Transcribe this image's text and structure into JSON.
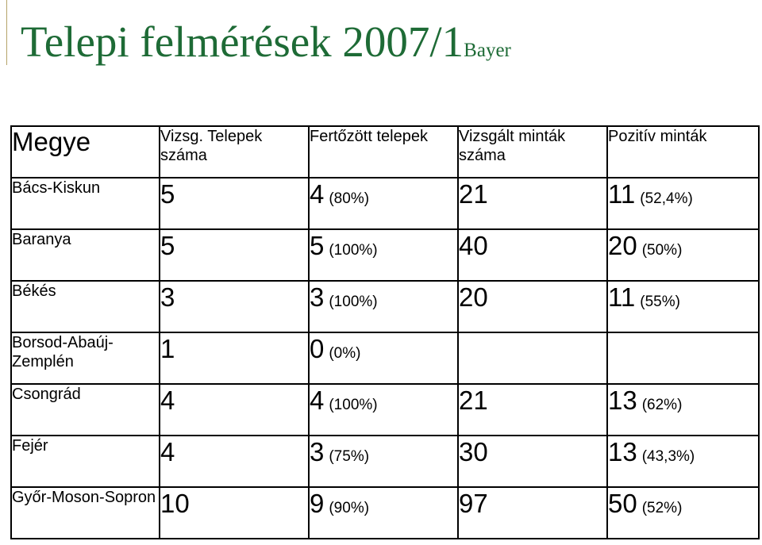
{
  "header": {
    "title": "Telepi felmérések 2007/1",
    "subtitle": "Bayer"
  },
  "table": {
    "columns": [
      "Megye",
      "Vizsg. Telepek száma",
      "Fertőzött telepek",
      "Vizsgált minták száma",
      "Pozitív minták"
    ],
    "rows": [
      {
        "county": "Bács-Kiskun",
        "telepek": "5",
        "fertozott": "4",
        "fertozott_pct": "(80%)",
        "mintak": "21",
        "pozitiv": "11",
        "pozitiv_pct": "(52,4%)"
      },
      {
        "county": "Baranya",
        "telepek": "5",
        "fertozott": "5",
        "fertozott_pct": "(100%)",
        "mintak": "40",
        "pozitiv": "20",
        "pozitiv_pct": "(50%)"
      },
      {
        "county": "Békés",
        "telepek": "3",
        "fertozott": "3",
        "fertozott_pct": "(100%)",
        "mintak": "20",
        "pozitiv": "11",
        "pozitiv_pct": "(55%)"
      },
      {
        "county": "Borsod-Abaúj-Zemplén",
        "telepek": "1",
        "fertozott": "0",
        "fertozott_pct": "(0%)",
        "mintak": "",
        "pozitiv": "",
        "pozitiv_pct": ""
      },
      {
        "county": "Csongrád",
        "telepek": "4",
        "fertozott": "4",
        "fertozott_pct": "(100%)",
        "mintak": "21",
        "pozitiv": "13",
        "pozitiv_pct": "(62%)"
      },
      {
        "county": "Fejér",
        "telepek": "4",
        "fertozott": "3",
        "fertozott_pct": "(75%)",
        "mintak": "30",
        "pozitiv": "13",
        "pozitiv_pct": "(43,3%)"
      },
      {
        "county": "Győr-Moson-Sopron",
        "telepek": "10",
        "fertozott": "9",
        "fertozott_pct": "(90%)",
        "mintak": "97",
        "pozitiv": "50",
        "pozitiv_pct": "(52%)"
      }
    ]
  },
  "colors": {
    "title": "#1e6b36",
    "border": "#000000"
  }
}
